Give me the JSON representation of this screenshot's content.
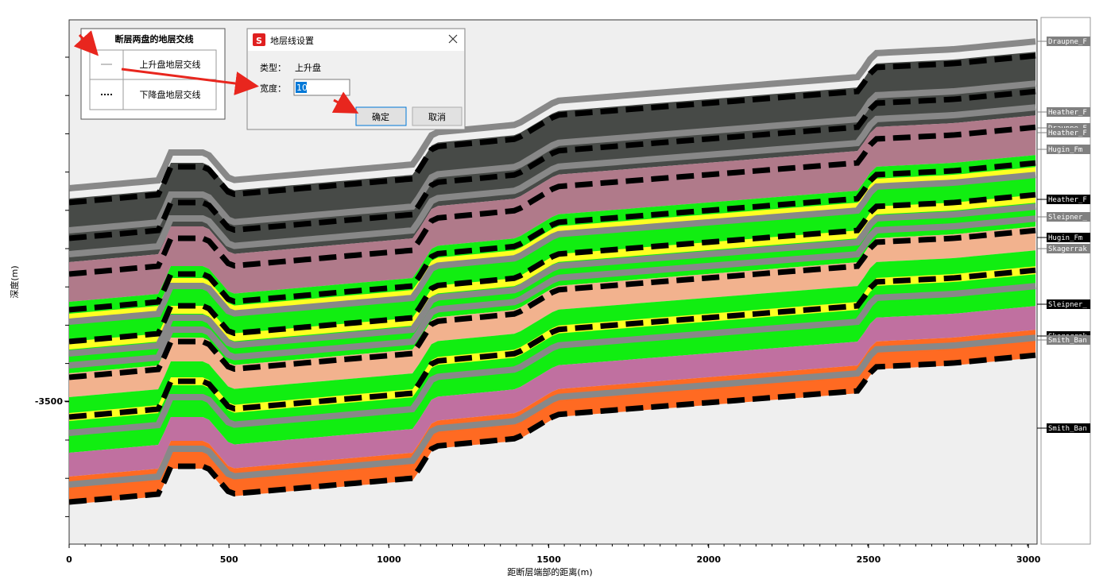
{
  "window": {
    "plot": {
      "x_axis_label": "距断层端部的距离(m)",
      "y_axis_label": "深度(m)",
      "xlim": [
        0,
        3027
      ],
      "xticks": [
        0,
        500,
        1000,
        1500,
        2000,
        2500,
        3000
      ],
      "ylim": [
        -3687.5,
        -3000
      ],
      "yticks": [
        -3500
      ]
    },
    "horizons": [
      {
        "label": "Draupne_F",
        "color": "#808080"
      },
      {
        "label": "Heather_F",
        "color": "#808080"
      },
      {
        "label": "Draupne_F",
        "color": "#808080"
      },
      {
        "label": "Heather_F",
        "color": "#808080"
      },
      {
        "label": "Hugin_Fm",
        "color": "#808080"
      },
      {
        "label": "Heather_F",
        "color": "#000000"
      },
      {
        "label": "Sleipner_",
        "color": "#808080"
      },
      {
        "label": "Hugin_Fm",
        "color": "#000000"
      },
      {
        "label": "Skagerrak",
        "color": "#808080"
      },
      {
        "label": "Sleipner_",
        "color": "#000000"
      },
      {
        "label": "Skagerrak",
        "color": "#000000"
      },
      {
        "label": "Smith_Ban",
        "color": "#808080"
      },
      {
        "label": "Smith_Ban",
        "color": "#000000"
      }
    ],
    "legend": {
      "title": "断层两盘的地层交线",
      "rows": [
        "上升盘地层交线",
        "下降盘地层交线"
      ]
    },
    "dialog": {
      "title": "地层线设置",
      "type_label": "类型：",
      "type_value": "上升盘",
      "width_label": "宽度：",
      "width_value": "10",
      "ok": "确定",
      "cancel": "取消"
    }
  }
}
